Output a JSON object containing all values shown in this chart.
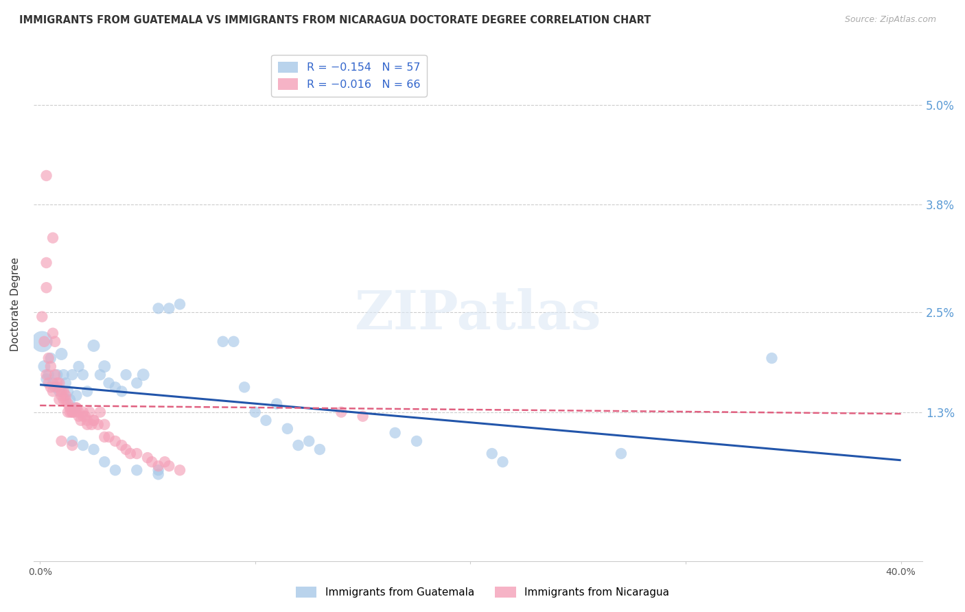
{
  "title": "IMMIGRANTS FROM GUATEMALA VS IMMIGRANTS FROM NICARAGUA DOCTORATE DEGREE CORRELATION CHART",
  "source": "Source: ZipAtlas.com",
  "ylabel": "Doctorate Degree",
  "yticks": [
    "5.0%",
    "3.8%",
    "2.5%",
    "1.3%"
  ],
  "ytick_vals": [
    0.05,
    0.038,
    0.025,
    0.013
  ],
  "xlim": [
    -0.003,
    0.41
  ],
  "ylim": [
    -0.005,
    0.057
  ],
  "legend_label1": "Immigrants from Guatemala",
  "legend_label2": "Immigrants from Nicaragua",
  "color_blue": "#a8c8e8",
  "color_pink": "#f4a0b8",
  "color_blue_line": "#2255aa",
  "color_pink_line": "#e06080",
  "watermark": "ZIPatlas",
  "blue_line_x0": 0.0,
  "blue_line_y0": 0.0163,
  "blue_line_x1": 0.4,
  "blue_line_y1": 0.0072,
  "pink_line_x0": 0.0,
  "pink_line_y0": 0.0138,
  "pink_line_x1": 0.4,
  "pink_line_y1": 0.0128,
  "guatemala_points": [
    [
      0.001,
      0.0215,
      35
    ],
    [
      0.002,
      0.0185,
      12
    ],
    [
      0.003,
      0.017,
      10
    ],
    [
      0.004,
      0.0175,
      10
    ],
    [
      0.005,
      0.0195,
      10
    ],
    [
      0.006,
      0.0165,
      10
    ],
    [
      0.007,
      0.016,
      10
    ],
    [
      0.008,
      0.0175,
      10
    ],
    [
      0.009,
      0.0155,
      10
    ],
    [
      0.01,
      0.02,
      12
    ],
    [
      0.011,
      0.0175,
      10
    ],
    [
      0.012,
      0.0165,
      10
    ],
    [
      0.013,
      0.0155,
      10
    ],
    [
      0.014,
      0.0145,
      10
    ],
    [
      0.015,
      0.0175,
      10
    ],
    [
      0.016,
      0.0135,
      10
    ],
    [
      0.017,
      0.015,
      10
    ],
    [
      0.018,
      0.0185,
      10
    ],
    [
      0.02,
      0.0175,
      10
    ],
    [
      0.022,
      0.0155,
      10
    ],
    [
      0.025,
      0.021,
      12
    ],
    [
      0.028,
      0.0175,
      10
    ],
    [
      0.03,
      0.0185,
      12
    ],
    [
      0.032,
      0.0165,
      10
    ],
    [
      0.035,
      0.016,
      10
    ],
    [
      0.038,
      0.0155,
      10
    ],
    [
      0.04,
      0.0175,
      10
    ],
    [
      0.045,
      0.0165,
      10
    ],
    [
      0.048,
      0.0175,
      12
    ],
    [
      0.055,
      0.0255,
      10
    ],
    [
      0.06,
      0.0255,
      10
    ],
    [
      0.065,
      0.026,
      10
    ],
    [
      0.085,
      0.0215,
      10
    ],
    [
      0.09,
      0.0215,
      10
    ],
    [
      0.095,
      0.016,
      10
    ],
    [
      0.1,
      0.013,
      10
    ],
    [
      0.105,
      0.012,
      10
    ],
    [
      0.11,
      0.014,
      10
    ],
    [
      0.115,
      0.011,
      10
    ],
    [
      0.12,
      0.009,
      10
    ],
    [
      0.125,
      0.0095,
      10
    ],
    [
      0.13,
      0.0085,
      10
    ],
    [
      0.165,
      0.0105,
      10
    ],
    [
      0.175,
      0.0095,
      10
    ],
    [
      0.21,
      0.008,
      10
    ],
    [
      0.215,
      0.007,
      10
    ],
    [
      0.27,
      0.008,
      10
    ],
    [
      0.34,
      0.0195,
      10
    ],
    [
      0.015,
      0.0095,
      10
    ],
    [
      0.02,
      0.009,
      10
    ],
    [
      0.025,
      0.0085,
      10
    ],
    [
      0.03,
      0.007,
      10
    ],
    [
      0.035,
      0.006,
      10
    ],
    [
      0.045,
      0.006,
      10
    ],
    [
      0.055,
      0.006,
      10
    ],
    [
      0.055,
      0.0055,
      10
    ]
  ],
  "nicaragua_points": [
    [
      0.001,
      0.0245,
      10
    ],
    [
      0.002,
      0.0215,
      10
    ],
    [
      0.003,
      0.0415,
      10
    ],
    [
      0.003,
      0.031,
      10
    ],
    [
      0.003,
      0.028,
      10
    ],
    [
      0.004,
      0.0195,
      10
    ],
    [
      0.005,
      0.0185,
      10
    ],
    [
      0.006,
      0.034,
      10
    ],
    [
      0.006,
      0.0225,
      10
    ],
    [
      0.007,
      0.0215,
      10
    ],
    [
      0.007,
      0.0175,
      10
    ],
    [
      0.008,
      0.0165,
      10
    ],
    [
      0.009,
      0.0165,
      10
    ],
    [
      0.01,
      0.0155,
      10
    ],
    [
      0.011,
      0.0155,
      10
    ],
    [
      0.012,
      0.015,
      10
    ],
    [
      0.013,
      0.014,
      10
    ],
    [
      0.014,
      0.013,
      10
    ],
    [
      0.015,
      0.013,
      10
    ],
    [
      0.016,
      0.013,
      10
    ],
    [
      0.017,
      0.0135,
      10
    ],
    [
      0.018,
      0.0125,
      10
    ],
    [
      0.019,
      0.012,
      10
    ],
    [
      0.02,
      0.013,
      10
    ],
    [
      0.021,
      0.0125,
      10
    ],
    [
      0.022,
      0.012,
      10
    ],
    [
      0.023,
      0.013,
      10
    ],
    [
      0.024,
      0.0115,
      10
    ],
    [
      0.025,
      0.012,
      10
    ],
    [
      0.027,
      0.0115,
      10
    ],
    [
      0.028,
      0.013,
      10
    ],
    [
      0.03,
      0.0115,
      10
    ],
    [
      0.003,
      0.0175,
      10
    ],
    [
      0.004,
      0.0165,
      10
    ],
    [
      0.005,
      0.016,
      10
    ],
    [
      0.006,
      0.0155,
      10
    ],
    [
      0.008,
      0.016,
      10
    ],
    [
      0.009,
      0.0145,
      10
    ],
    [
      0.01,
      0.015,
      10
    ],
    [
      0.011,
      0.0145,
      10
    ],
    [
      0.012,
      0.0145,
      10
    ],
    [
      0.013,
      0.013,
      10
    ],
    [
      0.014,
      0.0135,
      10
    ],
    [
      0.015,
      0.013,
      10
    ],
    [
      0.017,
      0.0135,
      10
    ],
    [
      0.018,
      0.013,
      10
    ],
    [
      0.02,
      0.0125,
      10
    ],
    [
      0.022,
      0.0115,
      10
    ],
    [
      0.025,
      0.012,
      10
    ],
    [
      0.03,
      0.01,
      10
    ],
    [
      0.032,
      0.01,
      10
    ],
    [
      0.035,
      0.0095,
      10
    ],
    [
      0.038,
      0.009,
      10
    ],
    [
      0.04,
      0.0085,
      10
    ],
    [
      0.042,
      0.008,
      10
    ],
    [
      0.045,
      0.008,
      10
    ],
    [
      0.05,
      0.0075,
      10
    ],
    [
      0.052,
      0.007,
      10
    ],
    [
      0.055,
      0.0065,
      10
    ],
    [
      0.058,
      0.007,
      10
    ],
    [
      0.06,
      0.0065,
      10
    ],
    [
      0.065,
      0.006,
      10
    ],
    [
      0.14,
      0.013,
      10
    ],
    [
      0.15,
      0.0125,
      10
    ],
    [
      0.01,
      0.0095,
      10
    ],
    [
      0.015,
      0.009,
      10
    ]
  ]
}
